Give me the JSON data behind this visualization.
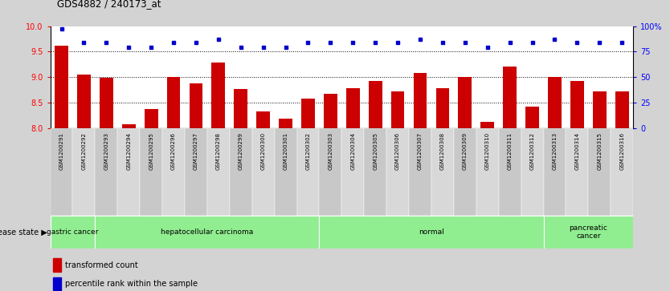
{
  "title": "GDS4882 / 240173_at",
  "samples": [
    "GSM1200291",
    "GSM1200292",
    "GSM1200293",
    "GSM1200294",
    "GSM1200295",
    "GSM1200296",
    "GSM1200297",
    "GSM1200298",
    "GSM1200299",
    "GSM1200300",
    "GSM1200301",
    "GSM1200302",
    "GSM1200303",
    "GSM1200304",
    "GSM1200305",
    "GSM1200306",
    "GSM1200307",
    "GSM1200308",
    "GSM1200309",
    "GSM1200310",
    "GSM1200311",
    "GSM1200312",
    "GSM1200313",
    "GSM1200314",
    "GSM1200315",
    "GSM1200316"
  ],
  "transformed_count": [
    9.62,
    9.05,
    8.99,
    8.08,
    8.38,
    9.0,
    8.87,
    9.28,
    8.77,
    8.32,
    8.18,
    8.58,
    8.68,
    8.78,
    8.92,
    8.72,
    9.08,
    8.78,
    9.0,
    8.12,
    9.2,
    8.42,
    9.0,
    8.92,
    8.72,
    8.72
  ],
  "percentile_rank": [
    97,
    84,
    84,
    79,
    79,
    84,
    84,
    87,
    79,
    79,
    79,
    84,
    84,
    84,
    84,
    84,
    87,
    84,
    84,
    79,
    84,
    84,
    87,
    84,
    84,
    84
  ],
  "group_boundaries": [
    {
      "label": "gastric cancer",
      "start": 0,
      "end": 2
    },
    {
      "label": "hepatocellular carcinoma",
      "start": 2,
      "end": 12
    },
    {
      "label": "normal",
      "start": 12,
      "end": 22
    },
    {
      "label": "pancreatic\ncancer",
      "start": 22,
      "end": 26
    }
  ],
  "bar_color": "#CC0000",
  "dot_color": "#0000CC",
  "ylim_left": [
    8.0,
    10.0
  ],
  "ylim_right": [
    0,
    100
  ],
  "yticks_left": [
    8.0,
    8.5,
    9.0,
    9.5,
    10.0
  ],
  "yticks_right": [
    0,
    25,
    50,
    75,
    100
  ],
  "grid_values": [
    8.5,
    9.0,
    9.5
  ],
  "figure_bg": "#d3d3d3",
  "plot_bg": "#ffffff",
  "group_color": "#90EE90",
  "tick_bg_even": "#c8c8c8",
  "tick_bg_odd": "#d8d8d8"
}
